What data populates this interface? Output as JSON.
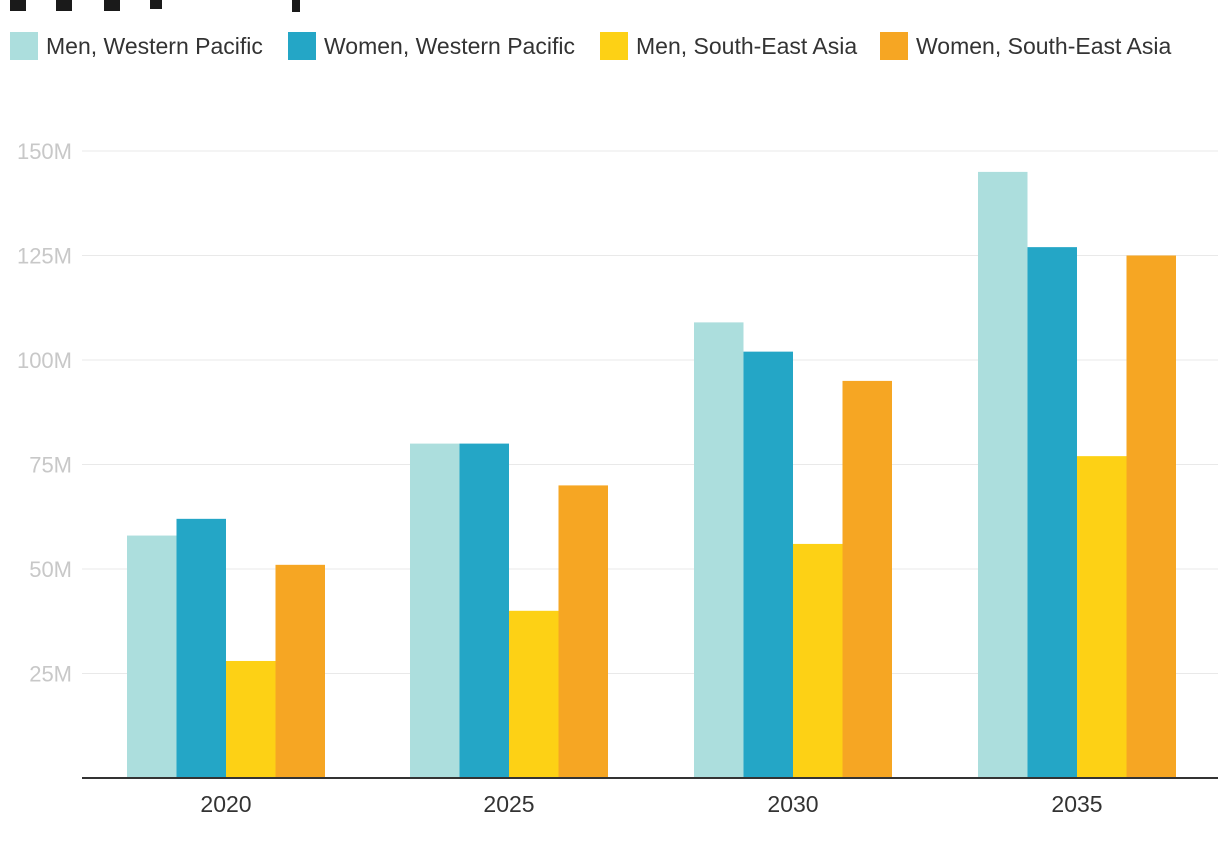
{
  "chart_data": {
    "type": "bar",
    "title": "",
    "xlabel": "",
    "ylabel": "",
    "categories": [
      "2020",
      "2025",
      "2030",
      "2035"
    ],
    "ylim": [
      0,
      150
    ],
    "yticks": [
      25,
      50,
      75,
      100,
      125,
      150
    ],
    "ytick_labels": [
      "25M",
      "50M",
      "75M",
      "100M",
      "125M",
      "150M"
    ],
    "unit": "M",
    "grid": true,
    "legend_position": "top-left",
    "series": [
      {
        "name": "Men, Western Pacific",
        "color": "#acdedd",
        "values": [
          58,
          80,
          109,
          145
        ]
      },
      {
        "name": "Women, Western Pacific",
        "color": "#24a6c6",
        "values": [
          62,
          80,
          102,
          127
        ]
      },
      {
        "name": "Men, South-East Asia",
        "color": "#fdd115",
        "values": [
          28,
          40,
          56,
          77
        ]
      },
      {
        "name": "Women, South-East Asia",
        "color": "#f6a623",
        "values": [
          51,
          70,
          95,
          125
        ]
      }
    ]
  }
}
